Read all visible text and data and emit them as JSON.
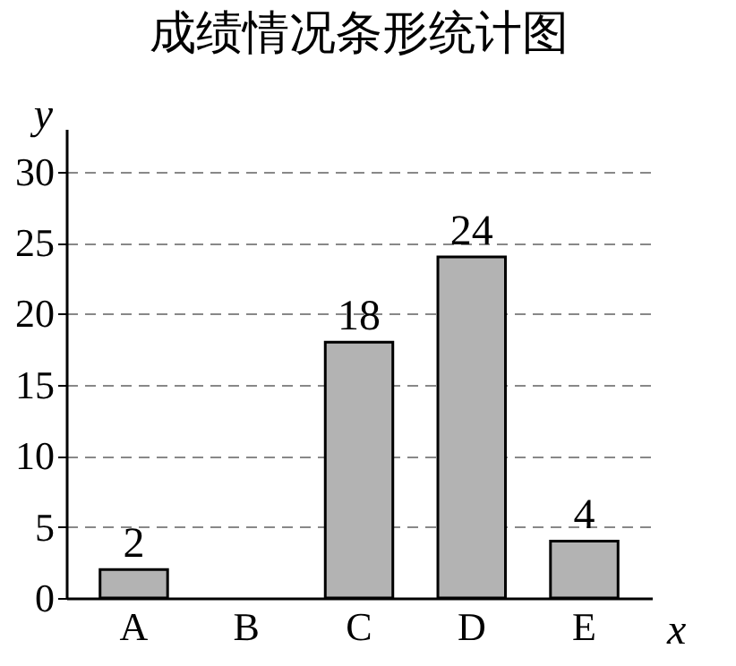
{
  "chart_data": {
    "type": "bar",
    "title": "成绩情况条形统计图",
    "xlabel": "x",
    "ylabel": "y",
    "categories": [
      "A",
      "B",
      "C",
      "D",
      "E"
    ],
    "values": [
      2,
      null,
      18,
      24,
      4
    ],
    "value_labels": [
      "2",
      null,
      "18",
      "24",
      "4"
    ],
    "color": "#b3b3b3",
    "ylim": [
      0,
      33
    ],
    "yticks": [
      0,
      5,
      10,
      15,
      20,
      25,
      30
    ],
    "grid": "y"
  }
}
